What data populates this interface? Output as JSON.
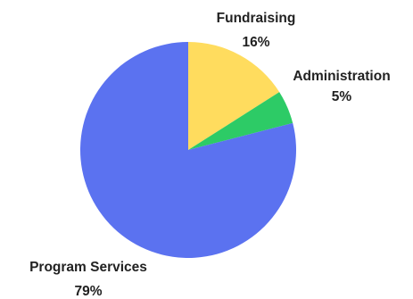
{
  "chart_data": {
    "type": "pie",
    "title": "",
    "slices": [
      {
        "label": "Fundraising",
        "value": 16,
        "display": "16%",
        "color": "#FFDC5E"
      },
      {
        "label": "Administration",
        "value": 5,
        "display": "5%",
        "color": "#2DCB66"
      },
      {
        "label": "Program Services",
        "value": 79,
        "display": "79%",
        "color": "#5B72F0"
      }
    ],
    "start_angle_deg": 0,
    "direction": "clockwise",
    "legend": "none"
  }
}
